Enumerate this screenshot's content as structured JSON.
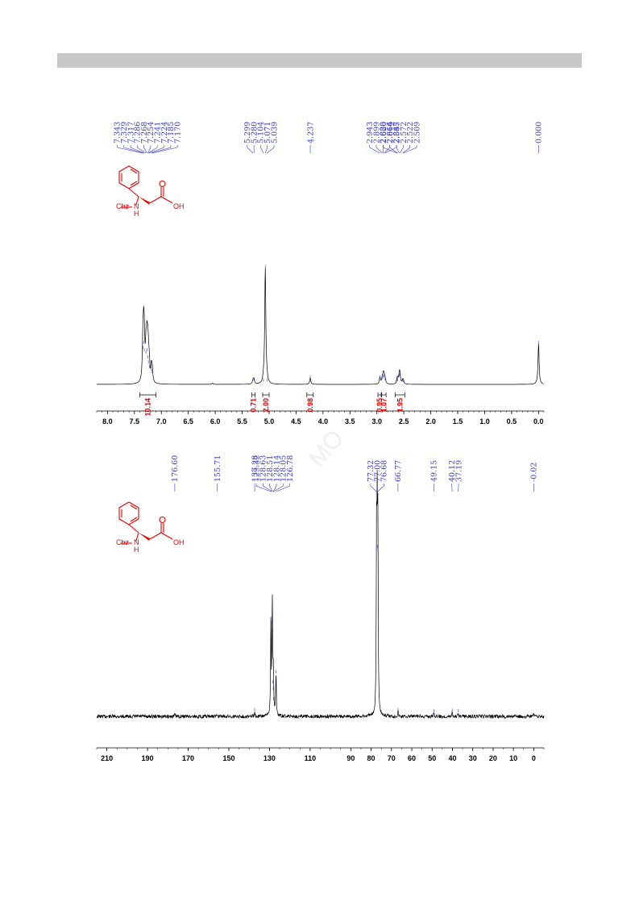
{
  "molecule": {
    "cbz": "Cbz",
    "nh": "H",
    "n": "N",
    "oh": "OH"
  },
  "watermark": "MO",
  "chart_data": [
    {
      "type": "line",
      "spectrum": "1H NMR",
      "x_axis": {
        "ticks": [
          "8.0",
          "7.5",
          "7.0",
          "6.5",
          "6.0",
          "5.5",
          "5.0",
          "4.5",
          "4.0",
          "3.5",
          "3.0",
          "2.5",
          "2.0",
          "1.5",
          "1.0",
          "0.5",
          "0.0"
        ],
        "range": [
          8.2,
          -0.1
        ],
        "reversed": true
      },
      "peak_labels": [
        {
          "group": [
            7.343,
            7.329,
            7.317,
            7.286,
            7.268,
            7.254,
            7.241,
            7.224,
            7.185,
            7.17
          ],
          "text": [
            "7.343",
            "7.329",
            "7.317",
            "7.286",
            "7.268",
            "7.254",
            "7.241",
            "7.224",
            "7.185",
            "7.170"
          ]
        },
        {
          "group": [
            5.299,
            5.28,
            5.104,
            5.071,
            5.039
          ],
          "text": [
            "5.299",
            "5.280",
            "5.104",
            "5.071",
            "5.039"
          ]
        },
        {
          "group": [
            4.237
          ],
          "text": [
            "4.237"
          ]
        },
        {
          "group": [
            2.943,
            2.899,
            2.88,
            2.866,
            2.847
          ],
          "text": [
            "2.943",
            "2.899",
            "2.880",
            "2.866",
            "2.847"
          ]
        },
        {
          "group": [
            2.626,
            2.614,
            2.585,
            2.572,
            2.522,
            2.509
          ],
          "text": [
            "2.626",
            "2.614",
            "2.585",
            "2.572",
            "2.522",
            "2.509"
          ]
        },
        {
          "group": [
            0.0
          ],
          "text": [
            "0.000"
          ]
        }
      ],
      "integrals": [
        {
          "from": 7.4,
          "to": 7.1,
          "value": "10.14"
        },
        {
          "from": 5.32,
          "to": 5.26,
          "value": "0.71"
        },
        {
          "from": 5.12,
          "to": 5.0,
          "value": "2.00"
        },
        {
          "from": 4.3,
          "to": 4.18,
          "value": "0.98"
        },
        {
          "from": 2.98,
          "to": 2.92,
          "value": "0.95"
        },
        {
          "from": 2.91,
          "to": 2.83,
          "value": "1.07"
        },
        {
          "from": 2.66,
          "to": 2.48,
          "value": "1.95"
        }
      ],
      "peaks": [
        {
          "x": 7.343,
          "h": 0.3
        },
        {
          "x": 7.329,
          "h": 0.34
        },
        {
          "x": 7.317,
          "h": 0.28
        },
        {
          "x": 7.286,
          "h": 0.26
        },
        {
          "x": 7.268,
          "h": 0.28
        },
        {
          "x": 7.254,
          "h": 0.22
        },
        {
          "x": 7.241,
          "h": 0.18
        },
        {
          "x": 7.224,
          "h": 0.14
        },
        {
          "x": 7.185,
          "h": 0.12
        },
        {
          "x": 7.17,
          "h": 0.1
        },
        {
          "x": 6.05,
          "h": 0.01
        },
        {
          "x": 5.299,
          "h": 0.035
        },
        {
          "x": 5.28,
          "h": 0.04
        },
        {
          "x": 5.104,
          "h": 0.03
        },
        {
          "x": 5.071,
          "h": 0.97
        },
        {
          "x": 5.039,
          "h": 0.03
        },
        {
          "x": 4.237,
          "h": 0.055
        },
        {
          "x": 2.943,
          "h": 0.055
        },
        {
          "x": 2.899,
          "h": 0.05
        },
        {
          "x": 2.88,
          "h": 0.065
        },
        {
          "x": 2.866,
          "h": 0.06
        },
        {
          "x": 2.847,
          "h": 0.04
        },
        {
          "x": 2.626,
          "h": 0.03
        },
        {
          "x": 2.614,
          "h": 0.035
        },
        {
          "x": 2.585,
          "h": 0.07
        },
        {
          "x": 2.572,
          "h": 0.075
        },
        {
          "x": 2.522,
          "h": 0.03
        },
        {
          "x": 2.509,
          "h": 0.025
        },
        {
          "x": 0.0,
          "h": 0.34
        }
      ]
    },
    {
      "type": "line",
      "spectrum": "13C NMR",
      "x_axis": {
        "ticks": [
          "210",
          "190",
          "170",
          "150",
          "130",
          "110",
          "90",
          "80",
          "70",
          "60",
          "50",
          "40",
          "30",
          "20",
          "10",
          "0"
        ],
        "range": [
          215,
          -5
        ],
        "reversed": true
      },
      "peak_labels": [
        {
          "group": [
            176.6
          ],
          "text": [
            "176.60"
          ]
        },
        {
          "group": [
            155.71
          ],
          "text": [
            "155.71"
          ]
        },
        {
          "group": [
            137.28
          ],
          "text": [
            "137.28"
          ]
        },
        {
          "group": [
            129.32,
            128.63,
            128.51,
            128.14,
            128.05,
            126.78
          ],
          "text": [
            "129.32",
            "128.63",
            "128.51",
            "128.14",
            "128.05",
            "126.78"
          ]
        },
        {
          "group": [
            77.32,
            77.0,
            76.68
          ],
          "text": [
            "77.32",
            "77.00",
            "76.68"
          ]
        },
        {
          "group": [
            66.77
          ],
          "text": [
            "66.77"
          ]
        },
        {
          "group": [
            49.15
          ],
          "text": [
            "49.15"
          ]
        },
        {
          "group": [
            40.12,
            37.19
          ],
          "text": [
            "40.12",
            "37.19"
          ]
        },
        {
          "group": [
            -0.02
          ],
          "text": [
            "-0.02"
          ]
        }
      ],
      "peaks": [
        {
          "x": 176.6,
          "h": 0.012
        },
        {
          "x": 155.71,
          "h": 0.015
        },
        {
          "x": 137.28,
          "h": 0.035
        },
        {
          "x": 129.32,
          "h": 0.57
        },
        {
          "x": 128.63,
          "h": 0.53
        },
        {
          "x": 128.51,
          "h": 0.2
        },
        {
          "x": 128.14,
          "h": 0.16
        },
        {
          "x": 128.05,
          "h": 0.1
        },
        {
          "x": 126.78,
          "h": 0.26
        },
        {
          "x": 77.32,
          "h": 1.0
        },
        {
          "x": 77.0,
          "h": 1.0
        },
        {
          "x": 76.68,
          "h": 0.98
        },
        {
          "x": 66.77,
          "h": 0.035
        },
        {
          "x": 49.15,
          "h": 0.03
        },
        {
          "x": 40.12,
          "h": 0.032
        },
        {
          "x": 37.19,
          "h": 0.03
        },
        {
          "x": -0.02,
          "h": 0.018
        }
      ]
    }
  ]
}
